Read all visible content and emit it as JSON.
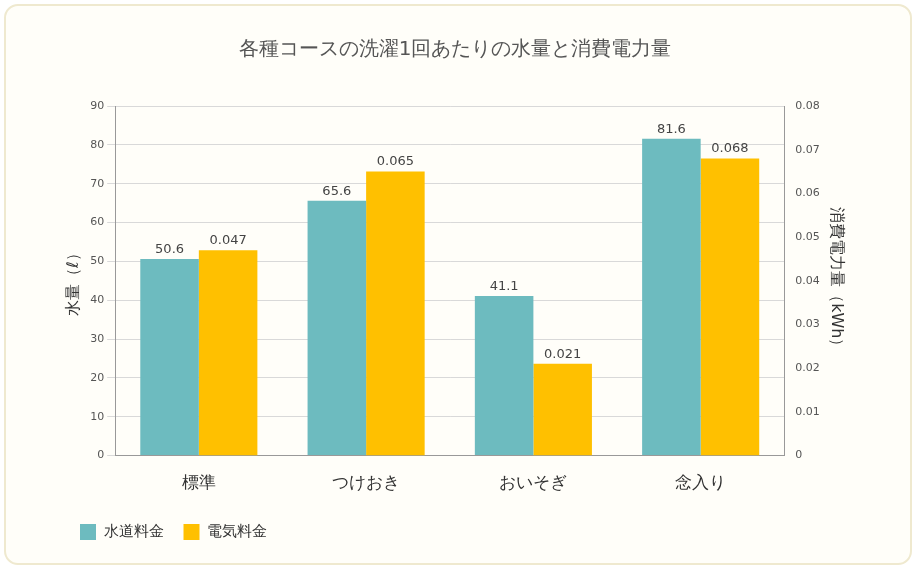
{
  "chart_data": {
    "type": "bar",
    "title": "各種コースの洗濯1回あたりの水量と消費電力量",
    "y_label": "水量（ℓ）",
    "y2_label": "消費電力量（kWh）",
    "categories": [
      "標準",
      "つけおき",
      "おいそぎ",
      "念入り"
    ],
    "series": [
      {
        "name": "水道料金",
        "color": "#6dbbbf",
        "values": [
          50.6,
          65.6,
          41.1,
          81.6
        ]
      },
      {
        "name": "電気料金",
        "color": "#ffc000",
        "values": [
          0.047,
          0.065,
          0.021,
          0.068
        ],
        "axis": "y2"
      }
    ],
    "ylim": [
      0,
      90
    ],
    "yticks": [
      0,
      10,
      20,
      30,
      40,
      50,
      60,
      70,
      80,
      90
    ],
    "y2lim": [
      0,
      0.08
    ],
    "y2ticks": [
      0,
      0.01,
      0.02,
      0.03,
      0.04,
      0.05,
      0.06,
      0.07,
      0.08
    ],
    "grid": true,
    "legend": "bottom",
    "data_labels": true
  }
}
